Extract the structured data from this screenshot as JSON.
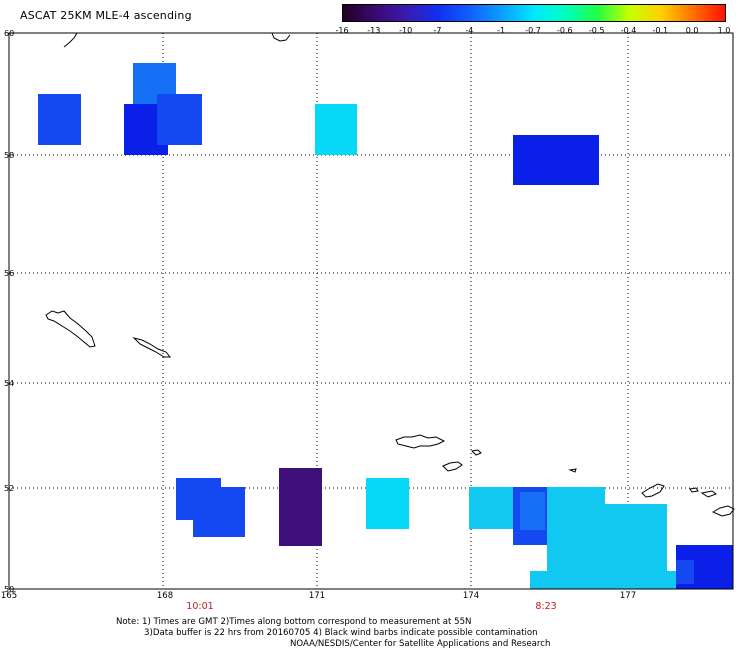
{
  "title": "ASCAT 25KM MLE-4 ascending",
  "colorbar": {
    "labels": [
      "-16",
      "-13",
      "-10",
      "-7",
      "-4",
      "-1",
      "-0.7",
      "-0.6",
      "-0.5",
      "-0.4",
      "-0.1",
      "0.0",
      "1.0"
    ],
    "colors": [
      "#200020",
      "#3a0a70",
      "#3a1ab0",
      "#1030f0",
      "#1060ff",
      "#0aa0ff",
      "#00e8ff",
      "#00ffc0",
      "#20ff40",
      "#c8ff00",
      "#ffd000",
      "#ff7000",
      "#ff1000"
    ]
  },
  "axes": {
    "lat_labels": [
      "60",
      "58",
      "56",
      "54",
      "52",
      "50"
    ],
    "lon_labels": [
      "165",
      "168",
      "171",
      "174",
      "177"
    ],
    "times": [
      "10:01",
      "8:23"
    ]
  },
  "notes": {
    "line1": "Note: 1) Times are GMT 2)Times along bottom correspond to measurement at 55N",
    "line2": "3)Data buffer is 22 hrs from 20160705 4) Black wind barbs indicate possible contamination",
    "line3": "NOAA/NESDIS/Center for Satellite Applications and Research"
  },
  "palette": {
    "blue_deep": "#0a20e8",
    "blue": "#1448f0",
    "blue_mid": "#1670f5",
    "sky": "#0aa0ff",
    "cyan": "#06d8f8",
    "cyan_light": "#10c8f0",
    "purple": "#40107a",
    "coast": "#000000"
  }
}
